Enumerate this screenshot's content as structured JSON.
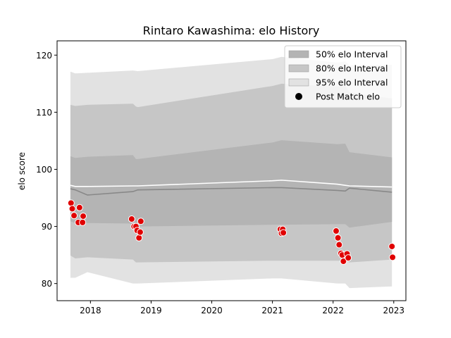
{
  "chart_data": {
    "type": "area",
    "title": "Rintaro Kawashima: elo History",
    "xlabel": "",
    "ylabel": "elo score",
    "xlim": [
      2017.45,
      2023.2
    ],
    "ylim": [
      77,
      122.5
    ],
    "x_ticks": [
      {
        "value": 2018,
        "label": "2018"
      },
      {
        "value": 2019,
        "label": "2019"
      },
      {
        "value": 2020,
        "label": "2020"
      },
      {
        "value": 2021,
        "label": "2021"
      },
      {
        "value": 2022,
        "label": "2022"
      },
      {
        "value": 2023,
        "label": "2023"
      }
    ],
    "y_ticks": [
      {
        "value": 80,
        "label": "80"
      },
      {
        "value": 90,
        "label": "90"
      },
      {
        "value": 100,
        "label": "100"
      },
      {
        "value": 110,
        "label": "110"
      },
      {
        "value": 120,
        "label": "120"
      }
    ],
    "legend": {
      "placement": "top-right",
      "entries": [
        {
          "name": "50% elo Interval",
          "kind": "patch",
          "color": "#b4b4b4"
        },
        {
          "name": "80% elo Interval",
          "kind": "patch",
          "color": "#c6c6c6"
        },
        {
          "name": "95% elo Interval",
          "kind": "patch",
          "color": "#e2e2e2"
        },
        {
          "name": "Post Match elo",
          "kind": "marker",
          "color": "#000000"
        }
      ]
    },
    "bands": [
      {
        "name": "95% elo Interval",
        "color": "#e2e2e2",
        "x": [
          2017.67,
          2017.75,
          2017.95,
          2018.7,
          2018.78,
          2021.0,
          2021.15,
          2022.07,
          2022.2,
          2022.27,
          2022.97
        ],
        "upper": [
          117.1,
          116.8,
          116.9,
          117.3,
          117.2,
          119.3,
          119.7,
          118.7,
          118.9,
          118.2,
          118.3
        ],
        "lower": [
          81.0,
          81.0,
          82.0,
          80.0,
          80.0,
          80.9,
          80.9,
          80.0,
          80.0,
          79.2,
          79.5
        ]
      },
      {
        "name": "80% elo Interval",
        "color": "#c6c6c6",
        "x": [
          2017.67,
          2017.75,
          2017.95,
          2018.7,
          2018.75,
          2018.78,
          2021.0,
          2021.15,
          2022.07,
          2022.2,
          2022.27,
          2022.97
        ],
        "upper": [
          111.3,
          111.1,
          111.3,
          111.5,
          111.0,
          110.9,
          114.6,
          115.0,
          114.5,
          114.6,
          113.5,
          112.4
        ],
        "lower": [
          84.9,
          84.4,
          84.6,
          84.2,
          83.7,
          83.7,
          84.0,
          84.0,
          84.0,
          84.0,
          83.7,
          84.2
        ]
      },
      {
        "name": "50% elo Interval",
        "color": "#b4b4b4",
        "x": [
          2017.67,
          2017.75,
          2017.95,
          2018.7,
          2018.75,
          2018.78,
          2021.0,
          2021.15,
          2022.07,
          2022.2,
          2022.27,
          2022.97
        ],
        "upper": [
          102.3,
          102.0,
          102.2,
          102.5,
          101.8,
          101.8,
          104.7,
          105.1,
          104.4,
          104.5,
          103.0,
          102.1
        ],
        "lower": [
          90.9,
          90.6,
          90.6,
          90.5,
          90.1,
          90.0,
          90.3,
          90.3,
          90.4,
          90.4,
          89.8,
          90.8
        ]
      }
    ],
    "series": [
      {
        "kind": "line",
        "color": "#ffffff",
        "x": [
          2017.67,
          2017.75,
          2017.95,
          2018.7,
          2018.78,
          2021.0,
          2021.15,
          2022.07,
          2022.2,
          2022.27,
          2022.97
        ],
        "values": [
          97.2,
          97.0,
          97.0,
          97.1,
          97.1,
          98.0,
          98.1,
          97.4,
          97.2,
          97.1,
          96.9
        ]
      },
      {
        "kind": "line",
        "color": "#888888",
        "x": [
          2017.67,
          2017.75,
          2017.95,
          2018.7,
          2018.78,
          2021.0,
          2021.15,
          2022.07,
          2022.2,
          2022.27,
          2022.97
        ],
        "values": [
          96.6,
          96.4,
          95.5,
          96.1,
          96.4,
          96.8,
          96.8,
          96.3,
          96.2,
          96.7,
          96.0
        ]
      },
      {
        "name": "Post Match elo",
        "kind": "scatter",
        "color": "#e00000",
        "x": [
          2017.68,
          2017.7,
          2017.73,
          2017.8,
          2017.82,
          2017.87,
          2017.88,
          2018.68,
          2018.72,
          2018.75,
          2018.77,
          2018.8,
          2018.82,
          2018.83,
          2021.13,
          2021.15,
          2021.17,
          2021.18,
          2022.05,
          2022.08,
          2022.1,
          2022.13,
          2022.15,
          2022.17,
          2022.23,
          2022.25,
          2022.97,
          2022.98
        ],
        "values": [
          94.1,
          93.1,
          91.9,
          90.7,
          93.3,
          90.7,
          91.8,
          91.3,
          90.0,
          90.0,
          89.3,
          88.0,
          89.0,
          90.9,
          89.5,
          88.8,
          89.5,
          88.9,
          89.2,
          88.0,
          86.8,
          85.3,
          85.0,
          83.9,
          85.2,
          84.5,
          86.5,
          84.6
        ]
      }
    ]
  }
}
